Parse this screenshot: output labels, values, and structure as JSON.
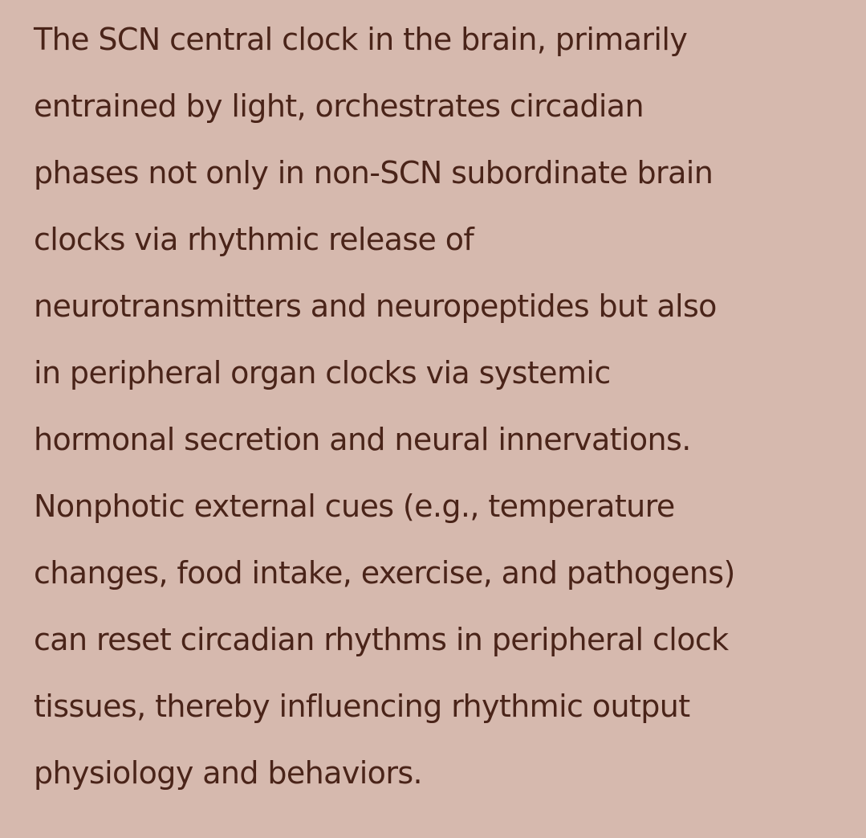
{
  "document": {
    "lines": [
      "The SCN central clock in the brain, primarily",
      "entrained by light, orchestrates circadian",
      "phases not only in non-SCN subordinate brain",
      "clocks via rhythmic release of",
      "neurotransmitters and neuropeptides but also",
      "in peripheral organ clocks via systemic",
      "hormonal secretion and neural innervations.",
      "Nonphotic external cues (e.g., temperature",
      "changes, food intake, exercise, and pathogens)",
      "can reset circadian rhythms in peripheral clock",
      "tissues, thereby influencing rhythmic output",
      "physiology and behaviors."
    ]
  },
  "colors": {
    "background": "#d6b9ae",
    "text": "#4a2419"
  }
}
